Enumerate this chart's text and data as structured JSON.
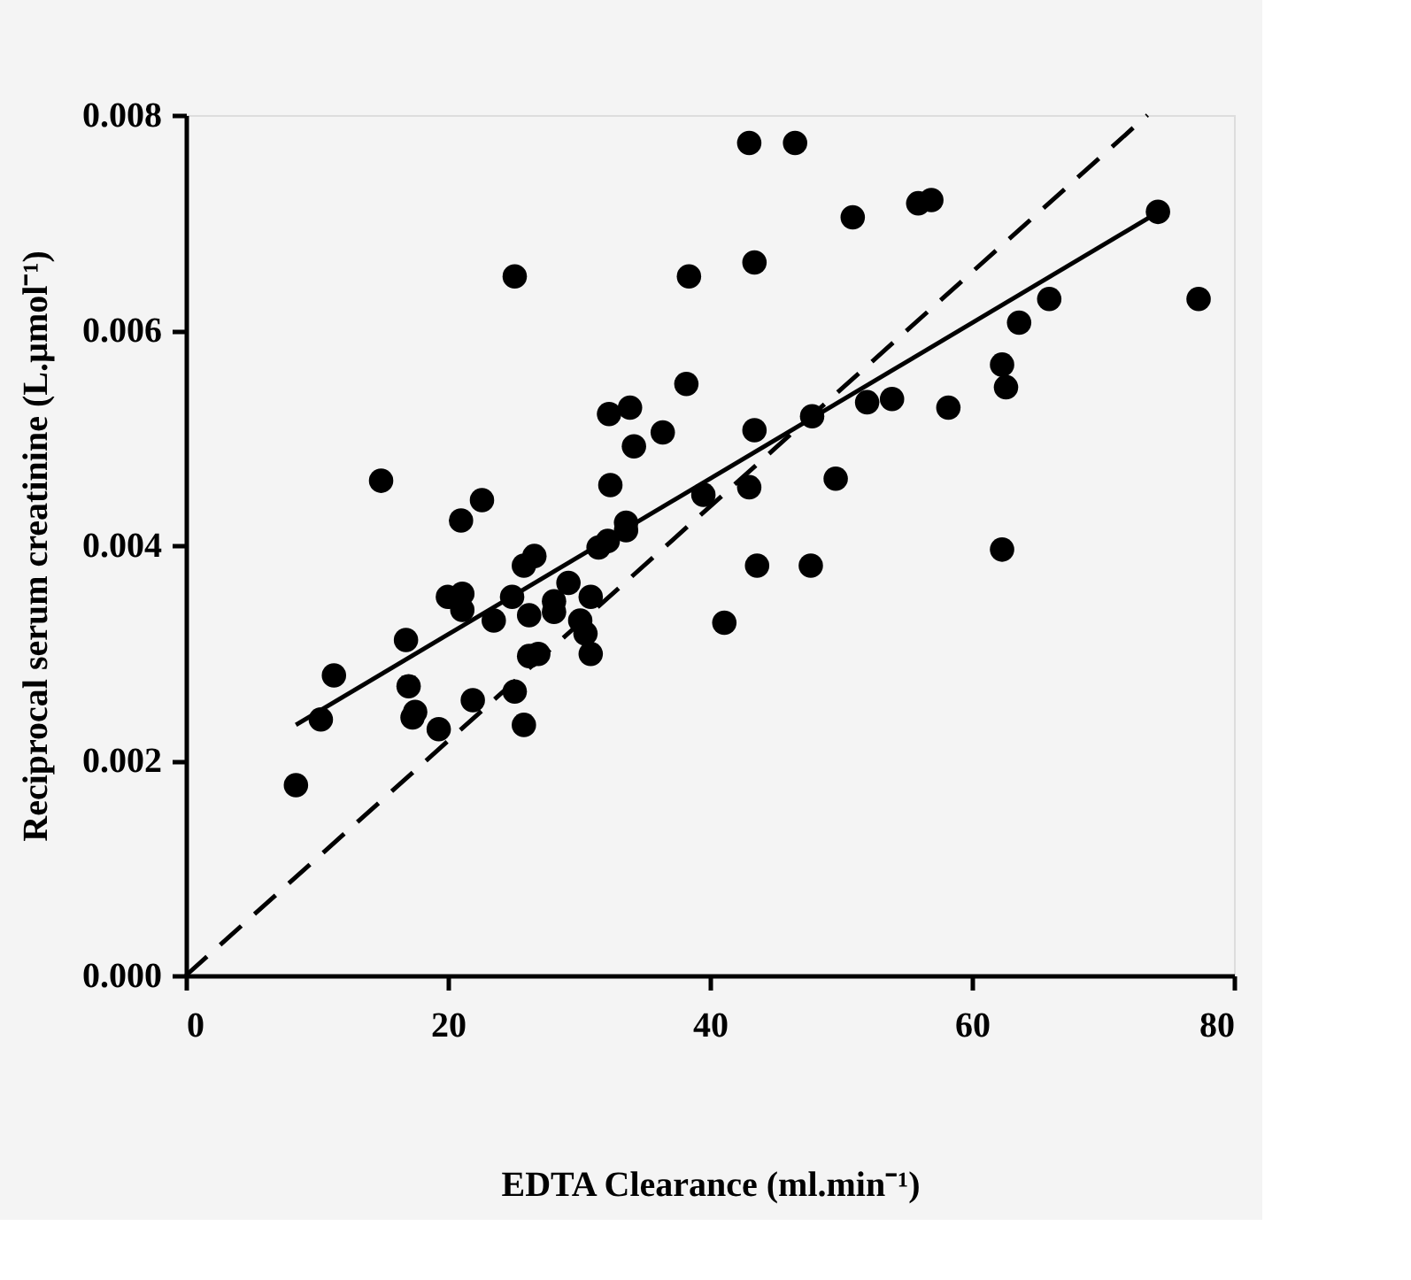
{
  "chart_data": {
    "type": "scatter",
    "xlabel": "EDTA Clearance (ml.min⁻¹)",
    "ylabel": "Reciprocal serum creatinine (L.µmol⁻¹)",
    "xlim": [
      0,
      80
    ],
    "ylim": [
      0,
      0.008
    ],
    "xticks": [
      0,
      20,
      40,
      60,
      80
    ],
    "yticks": [
      {
        "value": 0,
        "label": "0.000"
      },
      {
        "value": 0.002,
        "label": "0.002"
      },
      {
        "value": 0.004,
        "label": "0.004"
      },
      {
        "value": 0.006,
        "label": "0.006"
      },
      {
        "value": 0.008,
        "label": "0.008"
      }
    ],
    "grid": false,
    "legend": false,
    "series": [
      {
        "color": "#000000",
        "marker": "circle",
        "x": [
          8.4,
          10.3,
          11.3,
          14.9,
          16.8,
          17.0,
          17.3,
          17.5,
          19.3,
          20.0,
          21.0,
          21.1,
          21.1,
          21.9,
          22.6,
          23.5,
          24.9,
          25.1,
          25.1,
          25.8,
          25.8,
          26.2,
          26.2,
          26.6,
          26.9,
          28.1,
          28.1,
          29.2,
          30.1,
          30.5,
          30.9,
          30.9,
          31.5,
          32.2,
          32.3,
          32.4,
          33.6,
          33.6,
          33.9,
          34.2,
          36.4,
          38.2,
          38.4,
          39.5,
          41.1,
          43.0,
          43.0,
          43.4,
          43.4,
          43.6,
          46.5,
          47.7,
          47.8,
          49.6,
          50.9,
          52.0,
          53.9,
          55.9,
          56.9,
          58.2,
          62.3,
          62.3,
          62.6,
          63.6,
          65.9,
          74.2,
          77.3
        ],
        "values": [
          0.00177,
          0.00238,
          0.00279,
          0.0046,
          0.00312,
          0.00269,
          0.0024,
          0.00245,
          0.00229,
          0.00352,
          0.00423,
          0.00355,
          0.0034,
          0.00256,
          0.00442,
          0.0033,
          0.00352,
          0.0065,
          0.00264,
          0.00381,
          0.00233,
          0.00335,
          0.00297,
          0.0039,
          0.00299,
          0.00348,
          0.00338,
          0.00365,
          0.0033,
          0.00318,
          0.00352,
          0.00299,
          0.00398,
          0.00404,
          0.00522,
          0.00456,
          0.00414,
          0.00421,
          0.00528,
          0.00492,
          0.00505,
          0.0055,
          0.0065,
          0.00447,
          0.00328,
          0.00774,
          0.00454,
          0.00663,
          0.00507,
          0.00381,
          0.00774,
          0.00381,
          0.0052,
          0.00462,
          0.00705,
          0.00533,
          0.00536,
          0.00718,
          0.00721,
          0.00528,
          0.00568,
          0.00396,
          0.00547,
          0.00607,
          0.00629,
          0.0071,
          0.00629
        ]
      },
      {
        "type": "line",
        "color": "#000000",
        "line_style": "solid",
        "x": [
          8.4,
          74.4
        ],
        "values": [
          0.00233,
          0.00711
        ]
      },
      {
        "type": "line",
        "color": "#000000",
        "line_style": "dashed",
        "x": [
          0,
          73.4
        ],
        "values": [
          0,
          0.008
        ]
      }
    ]
  }
}
